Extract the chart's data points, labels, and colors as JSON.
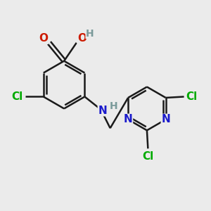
{
  "background_color": "#ebebeb",
  "bond_color": "#1a1a1a",
  "atom_colors": {
    "C": "#1a1a1a",
    "N": "#1a1acc",
    "O": "#cc1a00",
    "Cl": "#00aa00",
    "H": "#7a9a9a"
  },
  "figsize": [
    3.0,
    3.0
  ],
  "dpi": 100
}
